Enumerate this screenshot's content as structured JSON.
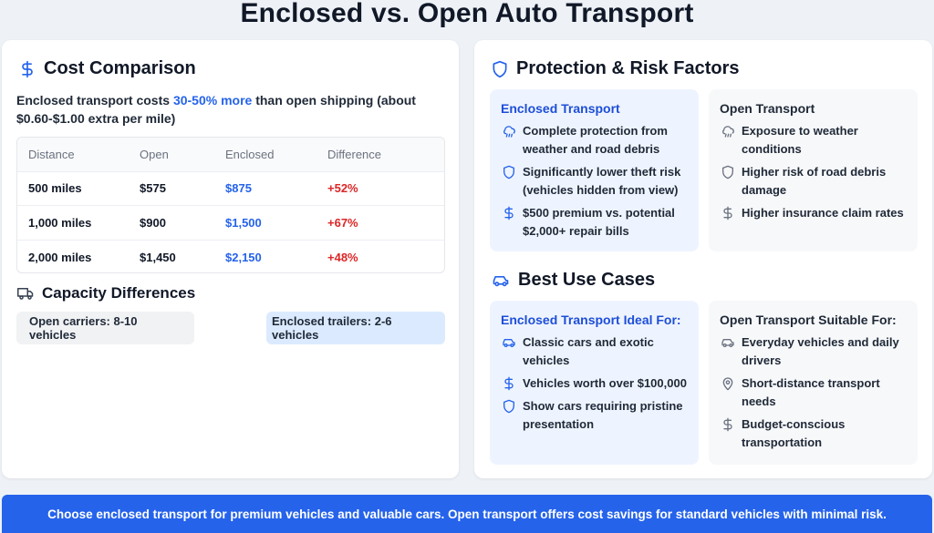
{
  "title": "Enclosed vs. Open Auto Transport",
  "cost": {
    "heading": "Cost Comparison",
    "intro_pre": "Enclosed transport costs ",
    "intro_highlight": "30-50% more",
    "intro_post": " than open shipping (about $0.60-$1.00 extra per mile)",
    "headers": [
      "Distance",
      "Open",
      "Enclosed",
      "Difference"
    ],
    "rows": [
      {
        "distance": "500 miles",
        "open": "$575",
        "enclosed": "$875",
        "diff": "+52%"
      },
      {
        "distance": "1,000 miles",
        "open": "$900",
        "enclosed": "$1,500",
        "diff": "+67%"
      },
      {
        "distance": "2,000 miles",
        "open": "$1,450",
        "enclosed": "$2,150",
        "diff": "+48%"
      }
    ]
  },
  "capacity": {
    "heading": "Capacity Differences",
    "open": "Open carriers: 8-10 vehicles",
    "enclosed": "Enclosed trailers: 2-6 vehicles"
  },
  "protection": {
    "heading": "Protection & Risk Factors",
    "enclosed": {
      "title": "Enclosed Transport",
      "items": [
        "Complete protection from weather and road debris",
        "Significantly lower theft risk (vehicles hidden from view)",
        "$500 premium vs. potential $2,000+ repair bills"
      ]
    },
    "open": {
      "title": "Open Transport",
      "items": [
        "Exposure to weather conditions",
        "Higher risk of road debris damage",
        "Higher insurance claim rates"
      ]
    }
  },
  "use_cases": {
    "heading": "Best Use Cases",
    "enclosed": {
      "title": "Enclosed Transport Ideal For:",
      "items": [
        "Classic cars and exotic vehicles",
        "Vehicles worth over $100,000",
        "Show cars requiring pristine presentation"
      ]
    },
    "open": {
      "title": "Open Transport Suitable For:",
      "items": [
        "Everyday vehicles and daily drivers",
        "Short-distance transport needs",
        "Budget-conscious transportation"
      ]
    }
  },
  "banner": "Choose enclosed transport for premium vehicles and valuable cars. Open transport offers cost savings for standard vehicles with minimal risk.",
  "colors": {
    "accent": "#2563eb",
    "negative": "#dc2626",
    "icon_gray": "#6b7280"
  },
  "icons": {
    "cost": "dollar-icon",
    "capacity": "truck-icon",
    "protection": "shield-icon",
    "use_cases": "car-icon",
    "weather": "cloud-rain-icon",
    "theft": "shield-icon",
    "money": "dollar-icon",
    "location": "map-pin-icon"
  }
}
